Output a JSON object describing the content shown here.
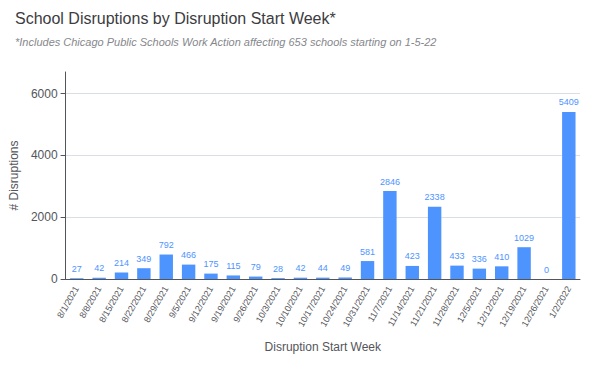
{
  "chart_data": {
    "type": "bar",
    "title": "School Disruptions by Disruption Start Week*",
    "subtitle": "*Includes Chicago Public Schools Work Action affecting 653 schools starting on 1-5-22",
    "xlabel": "Disruption Start Week",
    "ylabel": "# Disruptions",
    "categories": [
      "8/1/2021",
      "8/8/2021",
      "8/15/2021",
      "8/22/2021",
      "8/29/2021",
      "9/5/2021",
      "9/12/2021",
      "9/19/2021",
      "9/26/2021",
      "10/3/2021",
      "10/10/2021",
      "10/17/2021",
      "10/24/2021",
      "10/31/2021",
      "11/7/2021",
      "11/14/2021",
      "11/21/2021",
      "11/28/2021",
      "12/5/2021",
      "12/12/2021",
      "12/19/2021",
      "12/26/2021",
      "1/2/2022"
    ],
    "values": [
      27,
      42,
      214,
      349,
      792,
      466,
      175,
      115,
      79,
      28,
      42,
      44,
      49,
      581,
      2846,
      423,
      2338,
      433,
      336,
      410,
      1029,
      0,
      5409
    ],
    "color": "#4d94ff",
    "ylim": [
      0,
      6700
    ],
    "yticks": [
      0,
      2000,
      4000,
      6000
    ],
    "grid": true,
    "data_labels": true
  }
}
